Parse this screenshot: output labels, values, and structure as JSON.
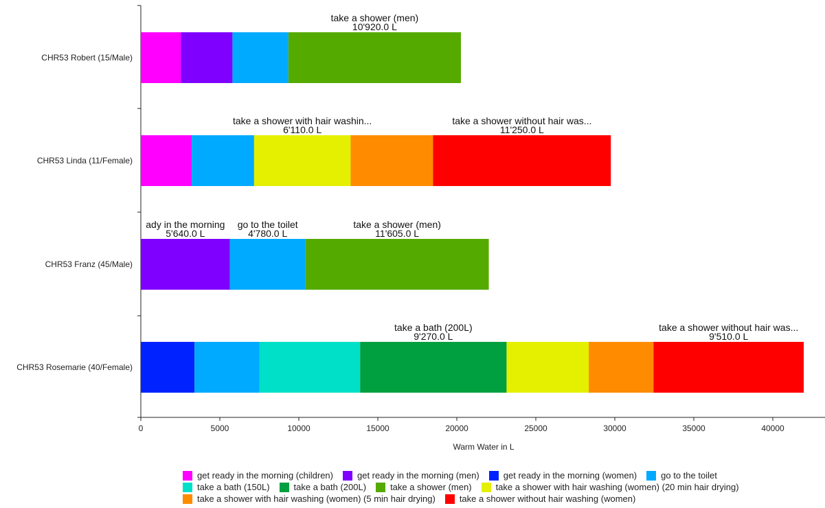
{
  "chart_data": {
    "type": "bar",
    "orientation": "horizontal",
    "stacked": true,
    "xlabel": "Warm Water in L",
    "xlim": [
      0,
      43000
    ],
    "xticks": [
      0,
      5000,
      10000,
      15000,
      20000,
      25000,
      30000,
      35000,
      40000
    ],
    "legend_position": "bottom",
    "categories": [
      "CHR53 Robert (15/Male)",
      "CHR53 Linda (11/Female)",
      "CHR53 Franz (45/Male)",
      "CHR53 Rosemarie (40/Female)"
    ],
    "legend": [
      {
        "name": "get ready in the morning (children)",
        "color": "#ff00ff"
      },
      {
        "name": "get ready in the morning (men)",
        "color": "#7f00ff"
      },
      {
        "name": "get ready in the morning (women)",
        "color": "#0022ff"
      },
      {
        "name": "go to the toilet",
        "color": "#00aaff"
      },
      {
        "name": "take a bath (150L)",
        "color": "#00e0c8"
      },
      {
        "name": "take a bath (200L)",
        "color": "#00a040"
      },
      {
        "name": "take a shower (men)",
        "color": "#55aa00"
      },
      {
        "name": "take a shower with hair washing (women) (20 min hair drying)",
        "color": "#e5f000"
      },
      {
        "name": "take a shower with hair washing (women) (5 min hair drying)",
        "color": "#ff8c00"
      },
      {
        "name": "take a shower without hair washing (women)",
        "color": "#ff0000"
      }
    ],
    "legend_rows": [
      [
        0,
        1,
        2,
        3
      ],
      [
        4,
        5,
        6,
        7
      ],
      [
        8,
        9
      ]
    ],
    "bars": [
      {
        "segments": [
          {
            "series": 0,
            "value": 2540
          },
          {
            "series": 1,
            "value": 3260
          },
          {
            "series": 3,
            "value": 3540
          },
          {
            "series": 6,
            "value": 10920,
            "label": "take a shower (men)",
            "value_label": "10'920.0 L"
          }
        ]
      },
      {
        "segments": [
          {
            "series": 0,
            "value": 3220
          },
          {
            "series": 3,
            "value": 3950
          },
          {
            "series": 7,
            "value": 6110,
            "label": "take a shower with hair washin...",
            "value_label": "6'110.0 L"
          },
          {
            "series": 8,
            "value": 5220
          },
          {
            "series": 9,
            "value": 11250,
            "label": "take a shower without hair was...",
            "value_label": "11'250.0 L"
          }
        ]
      },
      {
        "segments": [
          {
            "series": 1,
            "value": 5640,
            "label": "ady in the morning",
            "value_label": "5'640.0 L"
          },
          {
            "series": 3,
            "value": 4780,
            "label": "go to the toilet",
            "value_label": "4'780.0 L"
          },
          {
            "series": 6,
            "value": 11605,
            "label": "take a shower (men)",
            "value_label": "11'605.0 L"
          }
        ]
      },
      {
        "segments": [
          {
            "series": 2,
            "value": 3400
          },
          {
            "series": 3,
            "value": 4100
          },
          {
            "series": 4,
            "value": 6380
          },
          {
            "series": 5,
            "value": 9270,
            "label": "take a bath (200L)",
            "value_label": "9'270.0 L"
          },
          {
            "series": 7,
            "value": 5200
          },
          {
            "series": 8,
            "value": 4100
          },
          {
            "series": 9,
            "value": 9510,
            "label": "take a shower without hair was...",
            "value_label": "9'510.0 L"
          }
        ]
      }
    ]
  }
}
